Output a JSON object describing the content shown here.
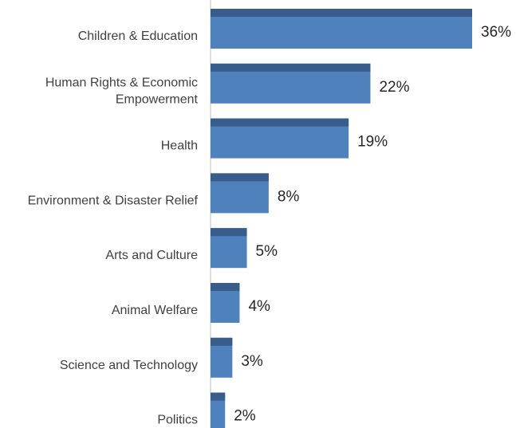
{
  "chart_data": {
    "type": "bar",
    "orientation": "horizontal",
    "title": "",
    "xlabel": "",
    "ylabel": "",
    "xlim": [
      0,
      36
    ],
    "grid": false,
    "legend": "none",
    "value_suffix": "%",
    "categories": [
      [
        "Children & Education"
      ],
      [
        "Human Rights & Economic",
        "Empowerment"
      ],
      [
        "Health"
      ],
      [
        "Environment & Disaster Relief"
      ],
      [
        "Arts and Culture"
      ],
      [
        "Animal Welfare"
      ],
      [
        "Science and Technology"
      ],
      [
        "Politics"
      ]
    ],
    "values": [
      36,
      22,
      19,
      8,
      5,
      4,
      3,
      2
    ],
    "value_labels": [
      "36%",
      "22%",
      "19%",
      "8%",
      "5%",
      "4%",
      "3%",
      "2%"
    ],
    "colors": {
      "bar_face": "#4f81bd",
      "bar_top": "#385d8a",
      "axis": "#bfbfbf"
    }
  }
}
